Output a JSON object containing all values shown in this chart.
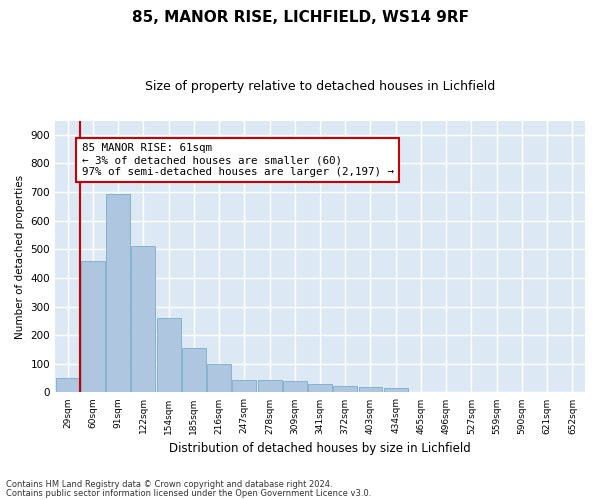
{
  "title1": "85, MANOR RISE, LICHFIELD, WS14 9RF",
  "title2": "Size of property relative to detached houses in Lichfield",
  "xlabel": "Distribution of detached houses by size in Lichfield",
  "ylabel": "Number of detached properties",
  "bar_color": "#aec6df",
  "bar_edge_color": "#7aaec8",
  "categories": [
    "29sqm",
    "60sqm",
    "91sqm",
    "122sqm",
    "154sqm",
    "185sqm",
    "216sqm",
    "247sqm",
    "278sqm",
    "309sqm",
    "341sqm",
    "372sqm",
    "403sqm",
    "434sqm",
    "465sqm",
    "496sqm",
    "527sqm",
    "559sqm",
    "590sqm",
    "621sqm",
    "652sqm"
  ],
  "values": [
    50,
    460,
    695,
    510,
    260,
    155,
    100,
    45,
    42,
    40,
    28,
    22,
    20,
    14,
    0,
    0,
    0,
    0,
    0,
    0,
    0
  ],
  "ylim": [
    0,
    950
  ],
  "yticks": [
    0,
    100,
    200,
    300,
    400,
    500,
    600,
    700,
    800,
    900
  ],
  "red_line_x": 0.5,
  "annotation_text": "85 MANOR RISE: 61sqm\n← 3% of detached houses are smaller (60)\n97% of semi-detached houses are larger (2,197) →",
  "annotation_box_color": "#ffffff",
  "annotation_box_edge": "#cc0000",
  "footnote1": "Contains HM Land Registry data © Crown copyright and database right 2024.",
  "footnote2": "Contains public sector information licensed under the Open Government Licence v3.0.",
  "fig_bg_color": "#ffffff",
  "plot_bg_color": "#dce9f5",
  "grid_color": "#ffffff",
  "title1_fontsize": 11,
  "title2_fontsize": 9
}
